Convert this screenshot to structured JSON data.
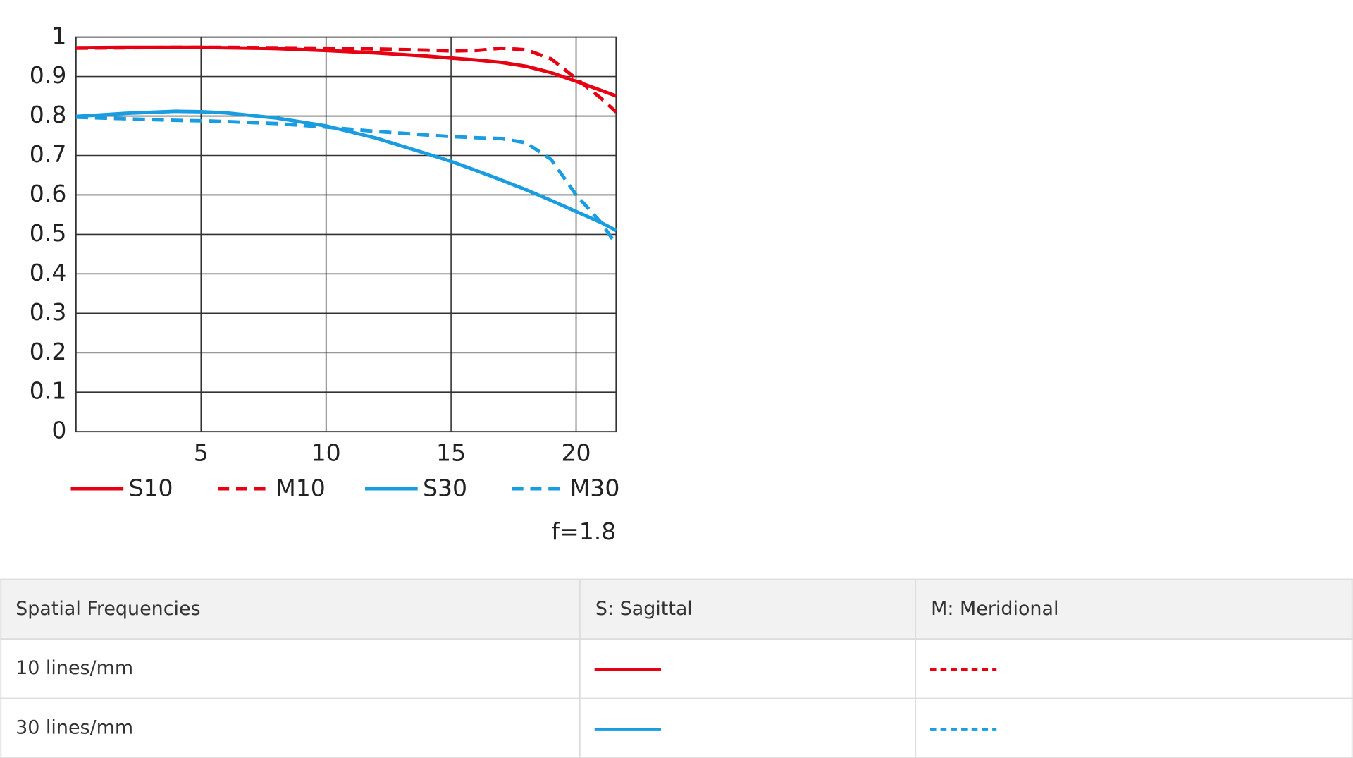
{
  "chart_data": {
    "type": "line",
    "x": [
      0,
      2,
      4,
      5,
      6,
      8,
      10,
      12,
      14,
      15,
      16,
      17,
      18,
      19,
      20,
      21,
      21.6
    ],
    "xlim": [
      0,
      21.6
    ],
    "xticks": [
      5,
      10,
      15,
      20
    ],
    "ylim": [
      0,
      1
    ],
    "yticks": [
      0,
      0.1,
      0.2,
      0.3,
      0.4,
      0.5,
      0.6,
      0.7,
      0.8,
      0.9,
      1
    ],
    "grid": true,
    "legend": "bottom",
    "annotation": "f=1.8",
    "series": [
      {
        "name": "S10",
        "color": "#e60012",
        "style": "solid",
        "values": [
          0.973,
          0.974,
          0.974,
          0.974,
          0.973,
          0.971,
          0.966,
          0.96,
          0.952,
          0.947,
          0.942,
          0.936,
          0.926,
          0.91,
          0.888,
          0.865,
          0.851
        ]
      },
      {
        "name": "M10",
        "color": "#e60012",
        "style": "dashed",
        "values": [
          0.972,
          0.973,
          0.974,
          0.974,
          0.974,
          0.973,
          0.972,
          0.97,
          0.967,
          0.965,
          0.966,
          0.972,
          0.968,
          0.945,
          0.895,
          0.845,
          0.81
        ]
      },
      {
        "name": "S30",
        "color": "#1a9de0",
        "style": "solid",
        "values": [
          0.799,
          0.807,
          0.812,
          0.811,
          0.808,
          0.795,
          0.775,
          0.744,
          0.705,
          0.685,
          0.662,
          0.638,
          0.613,
          0.586,
          0.558,
          0.53,
          0.51
        ]
      },
      {
        "name": "M30",
        "color": "#1a9de0",
        "style": "dashed",
        "values": [
          0.797,
          0.793,
          0.789,
          0.788,
          0.786,
          0.781,
          0.772,
          0.761,
          0.752,
          0.748,
          0.745,
          0.743,
          0.732,
          0.69,
          0.6,
          0.53,
          0.475
        ]
      }
    ]
  },
  "table": {
    "header": [
      "Spatial Frequencies",
      "S: Sagittal",
      "M: Meridional"
    ],
    "rows": [
      [
        "10 lines/mm"
      ],
      [
        "30 lines/mm"
      ]
    ]
  }
}
